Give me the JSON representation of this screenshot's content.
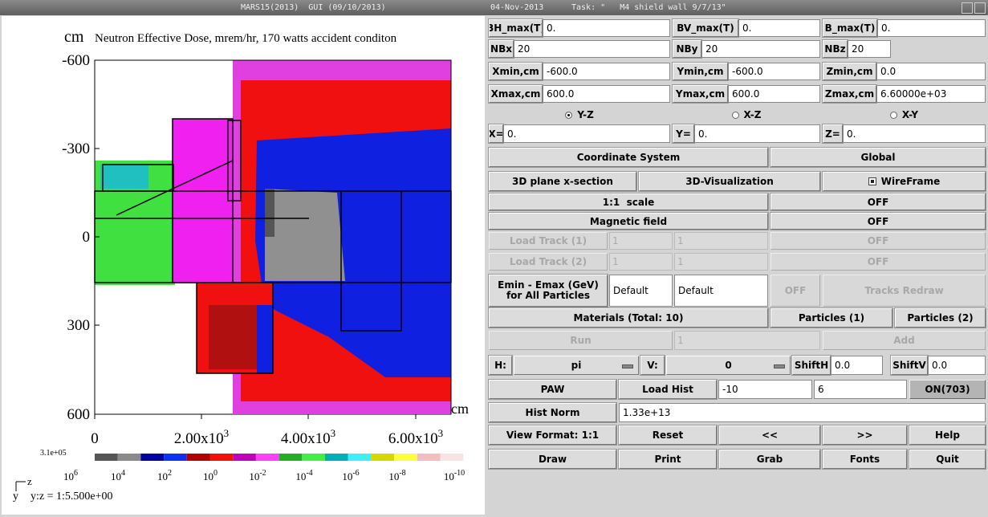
{
  "window": {
    "title": "MARS15(2013)  GUI (09/10/2013)",
    "date": "04-Nov-2013",
    "task": "Task: \"   M4 shield wall 9/7/13\""
  },
  "plot": {
    "title": "Neutron Effective Dose, mrem/hr, 170 watts accident conditon",
    "y_unit": "cm",
    "x_unit": "cm",
    "y_ticks": [
      "-600",
      "-300",
      "0",
      "300",
      "600"
    ],
    "x_ticks": [
      {
        "base": "0",
        "exp": ""
      },
      {
        "base": "2.00x10",
        "exp": "3"
      },
      {
        "base": "4.00x10",
        "exp": "3"
      },
      {
        "base": "6.00x10",
        "exp": "3"
      }
    ],
    "colorbar_max": "3.1e+05",
    "colorbar_labels": [
      {
        "base": "10",
        "exp": "6"
      },
      {
        "base": "10",
        "exp": "4"
      },
      {
        "base": "10",
        "exp": "2"
      },
      {
        "base": "10",
        "exp": "0"
      },
      {
        "base": "10",
        "exp": "-2"
      },
      {
        "base": "10",
        "exp": "-4"
      },
      {
        "base": "10",
        "exp": "-6"
      },
      {
        "base": "10",
        "exp": "-8"
      },
      {
        "base": "10",
        "exp": "-10"
      }
    ],
    "axis_z": "z",
    "axis_y": "y",
    "aspect": "y:z = 1:5.500e+00"
  },
  "controls": {
    "rows": [
      [
        "BH_max(T)",
        "0.",
        "BV_max(T)",
        "0.",
        "B_max(T)",
        "0."
      ],
      [
        "NBx",
        "20",
        "NBy",
        "20",
        "NBz",
        "20"
      ],
      [
        "Xmin,cm",
        "-600.0",
        "Ymin,cm",
        "-600.0",
        "Zmin,cm",
        "0.0"
      ],
      [
        "Xmax,cm",
        "600.0",
        "Ymax,cm",
        "600.0",
        "Zmax,cm",
        "6.60000e+03"
      ],
      [
        "Y-Z",
        "X-Z",
        "X-Y"
      ],
      [
        "X=",
        "0.",
        "Y=",
        "0.",
        "Z=",
        "0."
      ],
      [
        "Coordinate System",
        "Global"
      ],
      [
        "3D plane x-section",
        "3D-Visualization",
        "WireFrame"
      ],
      [
        "1:1  scale",
        "OFF"
      ],
      [
        "Magnetic field",
        "OFF"
      ],
      [
        "Load Track (1)",
        "1",
        "1",
        "OFF"
      ],
      [
        "Load Track (2)",
        "1",
        "1",
        "OFF"
      ],
      [
        "Emin - Emax (GeV) for All Particles",
        "Default",
        "Default",
        "OFF",
        "Tracks Redraw"
      ],
      [
        "Materials (Total: 10)",
        "Particles (1)",
        "Particles (2)"
      ],
      [
        "Run",
        "1",
        "Add"
      ],
      [
        "H:",
        "pi",
        "V:",
        "0",
        "ShiftH",
        "0.0",
        "ShiftV",
        "0.0"
      ],
      [
        "PAW",
        "Load Hist",
        "-10",
        "6",
        "ON(703)"
      ],
      [
        "Hist Norm",
        "1.33e+13"
      ],
      [
        "View Format: 1:1",
        "Reset",
        "<<",
        ">>",
        "Help"
      ],
      [
        "Draw",
        "Print",
        "Grab",
        "Fonts",
        "Quit"
      ]
    ]
  }
}
